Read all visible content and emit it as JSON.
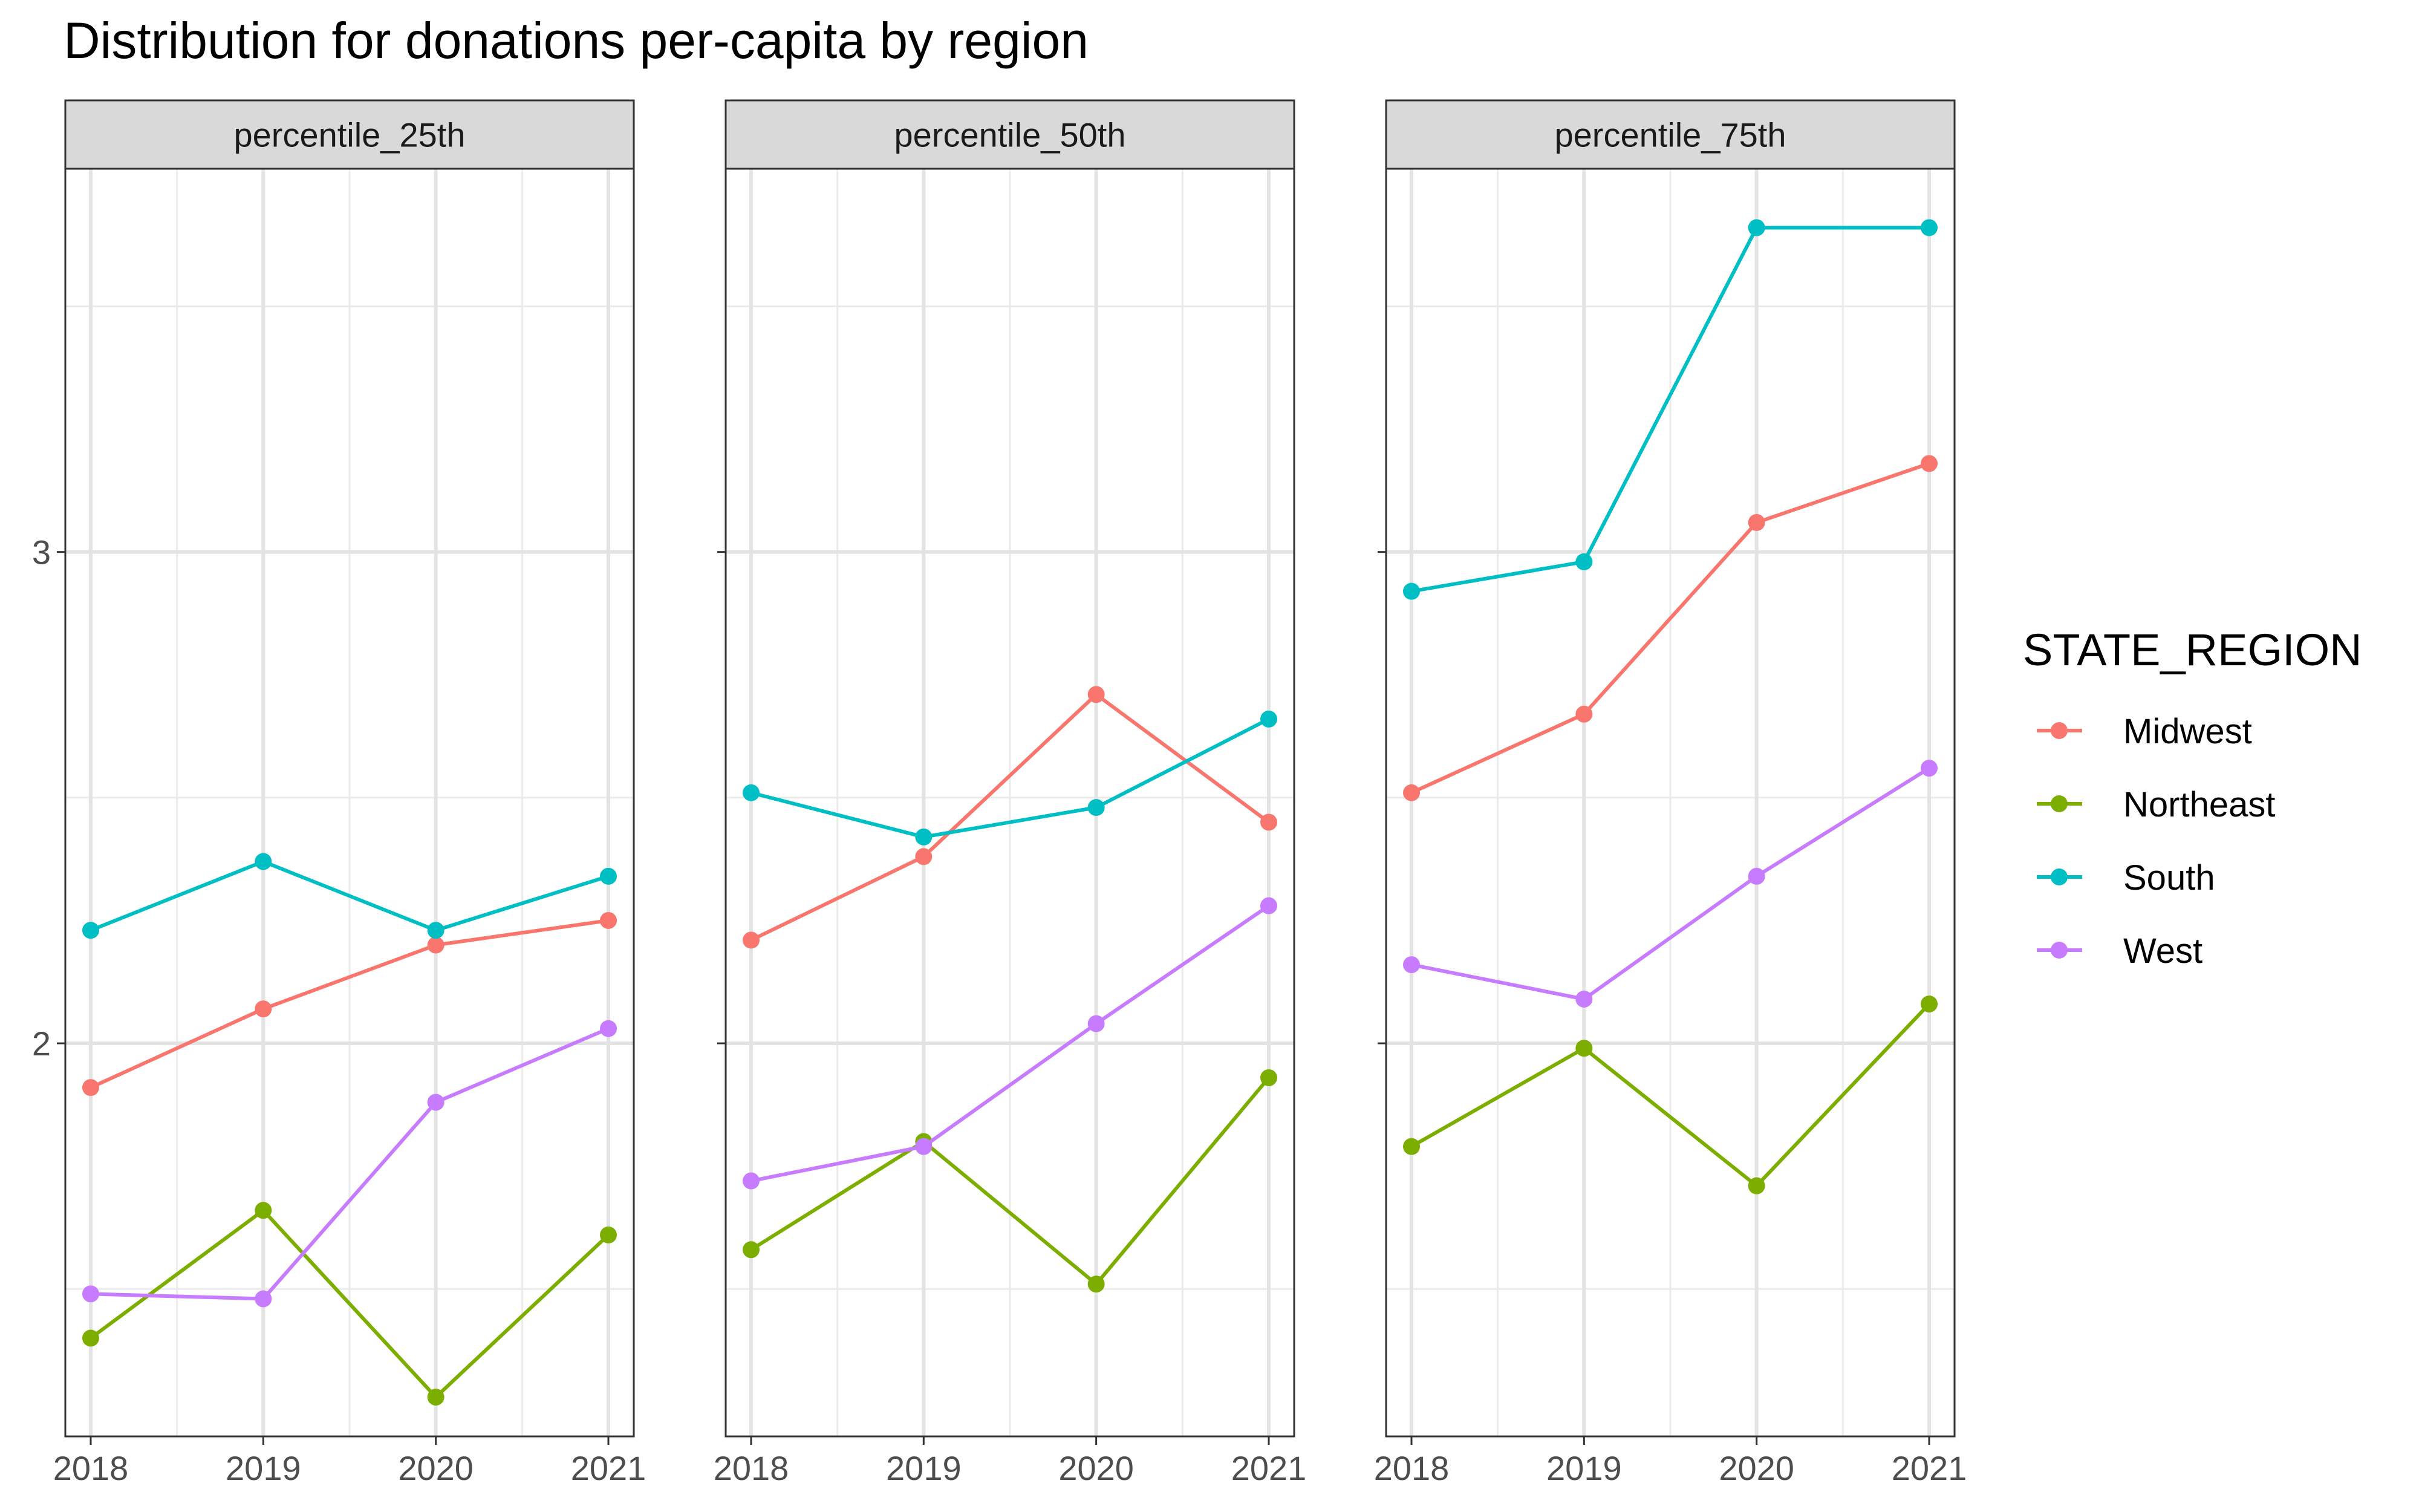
{
  "chart_data": {
    "type": "line",
    "title": "Distribution for donations per-capita by region",
    "xlabel": "",
    "ylabel": "",
    "x": [
      "2018",
      "2019",
      "2020",
      "2021"
    ],
    "ylim": [
      1.2,
      3.78
    ],
    "yticks": [
      2,
      3
    ],
    "grid": true,
    "legend": {
      "title": "STATE_REGION",
      "placement": "right"
    },
    "facets": [
      {
        "label": "percentile_25th",
        "series": [
          {
            "name": "Midwest",
            "color": "#F8766D",
            "values": [
              1.91,
              2.07,
              2.2,
              2.25
            ]
          },
          {
            "name": "Northeast",
            "color": "#7CAE00",
            "values": [
              1.4,
              1.66,
              1.28,
              1.61
            ]
          },
          {
            "name": "South",
            "color": "#00BFC4",
            "values": [
              2.23,
              2.37,
              2.23,
              2.34
            ]
          },
          {
            "name": "West",
            "color": "#C77CFF",
            "values": [
              1.49,
              1.48,
              1.88,
              2.03
            ]
          }
        ]
      },
      {
        "label": "percentile_50th",
        "series": [
          {
            "name": "Midwest",
            "color": "#F8766D",
            "values": [
              2.21,
              2.38,
              2.71,
              2.45
            ]
          },
          {
            "name": "Northeast",
            "color": "#7CAE00",
            "values": [
              1.58,
              1.8,
              1.51,
              1.93
            ]
          },
          {
            "name": "South",
            "color": "#00BFC4",
            "values": [
              2.51,
              2.42,
              2.48,
              2.66
            ]
          },
          {
            "name": "West",
            "color": "#C77CFF",
            "values": [
              1.72,
              1.79,
              2.04,
              2.28
            ]
          }
        ]
      },
      {
        "label": "percentile_75th",
        "series": [
          {
            "name": "Midwest",
            "color": "#F8766D",
            "values": [
              2.51,
              2.67,
              3.06,
              3.18
            ]
          },
          {
            "name": "Northeast",
            "color": "#7CAE00",
            "values": [
              1.79,
              1.99,
              1.71,
              2.08
            ]
          },
          {
            "name": "South",
            "color": "#00BFC4",
            "values": [
              2.92,
              2.98,
              3.66,
              3.66
            ]
          },
          {
            "name": "West",
            "color": "#C77CFF",
            "values": [
              2.16,
              2.09,
              2.34,
              2.56
            ]
          }
        ]
      }
    ]
  }
}
